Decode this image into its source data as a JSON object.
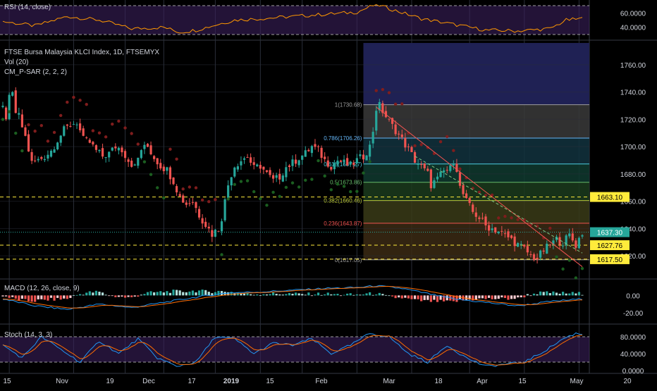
{
  "colors": {
    "background": "#000000",
    "grid": "#2a2e39",
    "text": "#d1d4dc",
    "up": "#26a69a",
    "down": "#ef5350",
    "rsi_line": "#ff9800",
    "rsi_band": "#3b1f5c",
    "macd_line": "#2196f3",
    "signal_line": "#ff6d00",
    "stoch_k": "#2196f3",
    "stoch_d": "#ff6d00",
    "sar_up": "#1b5e20",
    "sar_down": "#7f1d1d",
    "last_price": "#26a69a",
    "level_yellow": "#ffeb3b"
  },
  "rsi_panel": {
    "label": "RSI (14, close)",
    "ticks": [
      "60.0000",
      "40.0000"
    ]
  },
  "price_panel": {
    "title": "FTSE Bursa Malaysia KLCI Index, 1D, FTSEMYX",
    "indicator_labels": [
      "Vol (20)",
      "CM_P-SAR (2, 2, 2)"
    ],
    "ticks": [
      "1760.00",
      "1740.00",
      "1720.00",
      "1700.00",
      "1680.00",
      "1660.00",
      "1640.00",
      "1620.00"
    ],
    "price_tags": [
      {
        "label": "1663.10",
        "kind": "level"
      },
      {
        "label": "1637.30",
        "kind": "last"
      },
      {
        "label": "1627.76",
        "kind": "level"
      },
      {
        "label": "1617.50",
        "kind": "level"
      }
    ],
    "fib_levels": [
      {
        "label": "1(1730.68)"
      },
      {
        "label": "0.786(1706.26)"
      },
      {
        "label": "0.618(1687.27)"
      },
      {
        "label": "0.5(1673.86)"
      },
      {
        "label": "0.382(1660.46)"
      },
      {
        "label": "0.236(1643.87)"
      },
      {
        "label": "0(1617.05)"
      }
    ]
  },
  "macd_panel": {
    "label": "MACD (12, 26, close, 9)",
    "ticks": [
      "0.00",
      "-20.00"
    ]
  },
  "stoch_panel": {
    "label": "Stoch (14, 3, 3)",
    "ticks": [
      "80.0000",
      "40.0000",
      "0.0000"
    ]
  },
  "time_axis": {
    "labels": [
      "15",
      "Nov",
      "19",
      "Dec",
      "17",
      "2019",
      "15",
      "Feb",
      "Mar",
      "18",
      "Apr",
      "15",
      "May",
      "20"
    ]
  },
  "chart_data": {
    "type": "candlestick",
    "title": "FTSE Bursa Malaysia KLCI Index, 1D, FTSEMYX",
    "y_range": [
      1603,
      1778
    ],
    "close_anchors": [
      [
        0,
        1728
      ],
      [
        1,
        1722
      ],
      [
        2,
        1735
      ],
      [
        3,
        1738
      ],
      [
        4,
        1725
      ],
      [
        5,
        1722
      ],
      [
        7,
        1707
      ],
      [
        9,
        1688
      ],
      [
        11,
        1690
      ],
      [
        13,
        1693
      ],
      [
        15,
        1697
      ],
      [
        17,
        1705
      ],
      [
        19,
        1712
      ],
      [
        21,
        1716
      ],
      [
        23,
        1718
      ],
      [
        25,
        1705
      ],
      [
        27,
        1703
      ],
      [
        29,
        1697
      ],
      [
        31,
        1693
      ],
      [
        33,
        1695
      ],
      [
        35,
        1700
      ],
      [
        37,
        1698
      ],
      [
        39,
        1690
      ],
      [
        41,
        1685
      ],
      [
        43,
        1698
      ],
      [
        45,
        1700
      ],
      [
        47,
        1692
      ],
      [
        49,
        1686
      ],
      [
        51,
        1683
      ],
      [
        53,
        1675
      ],
      [
        55,
        1663
      ],
      [
        57,
        1658
      ],
      [
        59,
        1660
      ],
      [
        61,
        1650
      ],
      [
        63,
        1643
      ],
      [
        65,
        1636
      ],
      [
        67,
        1640
      ],
      [
        68,
        1648
      ],
      [
        69,
        1660
      ],
      [
        70,
        1672
      ],
      [
        71,
        1680
      ],
      [
        72,
        1686
      ],
      [
        74,
        1690
      ],
      [
        76,
        1693
      ],
      [
        78,
        1684
      ],
      [
        80,
        1686
      ],
      [
        82,
        1680
      ],
      [
        84,
        1675
      ],
      [
        86,
        1678
      ],
      [
        88,
        1685
      ],
      [
        90,
        1688
      ],
      [
        92,
        1692
      ],
      [
        94,
        1695
      ],
      [
        96,
        1700
      ],
      [
        98,
        1697
      ],
      [
        100,
        1690
      ],
      [
        102,
        1686
      ],
      [
        104,
        1690
      ],
      [
        106,
        1688
      ],
      [
        108,
        1686
      ],
      [
        110,
        1690
      ],
      [
        112,
        1693
      ],
      [
        114,
        1700
      ],
      [
        115,
        1712
      ],
      [
        116,
        1728
      ],
      [
        117,
        1730
      ],
      [
        118,
        1726
      ],
      [
        120,
        1718
      ],
      [
        122,
        1712
      ],
      [
        124,
        1705
      ],
      [
        126,
        1698
      ],
      [
        128,
        1690
      ],
      [
        130,
        1685
      ],
      [
        132,
        1680
      ],
      [
        133,
        1672
      ],
      [
        135,
        1676
      ],
      [
        137,
        1682
      ],
      [
        139,
        1684
      ],
      [
        140,
        1690
      ],
      [
        141,
        1684
      ],
      [
        142,
        1670
      ],
      [
        144,
        1660
      ],
      [
        146,
        1652
      ],
      [
        148,
        1648
      ],
      [
        150,
        1642
      ],
      [
        152,
        1640
      ],
      [
        154,
        1638
      ],
      [
        156,
        1635
      ],
      [
        158,
        1632
      ],
      [
        160,
        1628
      ],
      [
        162,
        1625
      ],
      [
        164,
        1620
      ],
      [
        166,
        1618
      ],
      [
        168,
        1624
      ],
      [
        170,
        1628
      ],
      [
        172,
        1632
      ],
      [
        174,
        1630
      ],
      [
        176,
        1635
      ],
      [
        178,
        1628
      ],
      [
        180,
        1637
      ]
    ],
    "fib_prices": [
      1730.68,
      1706.26,
      1687.27,
      1673.86,
      1660.46,
      1643.87,
      1617.05
    ],
    "horizontal_levels": [
      1663.1,
      1627.76,
      1617.5
    ],
    "last_price": 1637.3,
    "rsi_range": [
      28,
      72
    ],
    "rsi_levels": [
      70,
      30
    ],
    "rsi_anchors": [
      [
        0,
        48
      ],
      [
        10,
        42
      ],
      [
        20,
        55
      ],
      [
        30,
        50
      ],
      [
        40,
        38
      ],
      [
        50,
        40
      ],
      [
        55,
        33
      ],
      [
        60,
        36
      ],
      [
        65,
        42
      ],
      [
        72,
        50
      ],
      [
        80,
        52
      ],
      [
        90,
        55
      ],
      [
        100,
        58
      ],
      [
        110,
        61
      ],
      [
        116,
        72
      ],
      [
        120,
        66
      ],
      [
        130,
        52
      ],
      [
        140,
        44
      ],
      [
        150,
        36
      ],
      [
        160,
        35
      ],
      [
        170,
        38
      ],
      [
        175,
        50
      ],
      [
        180,
        52
      ]
    ],
    "macd_range": [
      -28,
      14
    ],
    "macd_anchors": [
      [
        0,
        -4
      ],
      [
        10,
        -12
      ],
      [
        20,
        -16
      ],
      [
        30,
        -10
      ],
      [
        40,
        -14
      ],
      [
        50,
        -8
      ],
      [
        60,
        -2
      ],
      [
        70,
        3
      ],
      [
        80,
        4
      ],
      [
        90,
        6
      ],
      [
        100,
        8
      ],
      [
        110,
        9
      ],
      [
        116,
        11
      ],
      [
        124,
        8
      ],
      [
        132,
        2
      ],
      [
        140,
        -4
      ],
      [
        150,
        -8
      ],
      [
        160,
        -12
      ],
      [
        170,
        -7
      ],
      [
        180,
        -4
      ]
    ],
    "stoch_range": [
      0,
      100
    ],
    "stoch_levels": [
      80,
      20
    ],
    "stoch_k_anchors": [
      [
        0,
        60
      ],
      [
        6,
        30
      ],
      [
        12,
        80
      ],
      [
        18,
        50
      ],
      [
        24,
        20
      ],
      [
        30,
        70
      ],
      [
        36,
        40
      ],
      [
        42,
        75
      ],
      [
        48,
        30
      ],
      [
        54,
        10
      ],
      [
        60,
        20
      ],
      [
        66,
        80
      ],
      [
        72,
        75
      ],
      [
        78,
        40
      ],
      [
        84,
        65
      ],
      [
        90,
        60
      ],
      [
        96,
        75
      ],
      [
        102,
        40
      ],
      [
        108,
        60
      ],
      [
        114,
        88
      ],
      [
        120,
        80
      ],
      [
        126,
        40
      ],
      [
        132,
        20
      ],
      [
        138,
        60
      ],
      [
        144,
        30
      ],
      [
        150,
        10
      ],
      [
        156,
        15
      ],
      [
        162,
        20
      ],
      [
        168,
        45
      ],
      [
        174,
        75
      ],
      [
        178,
        88
      ],
      [
        180,
        86
      ]
    ]
  }
}
